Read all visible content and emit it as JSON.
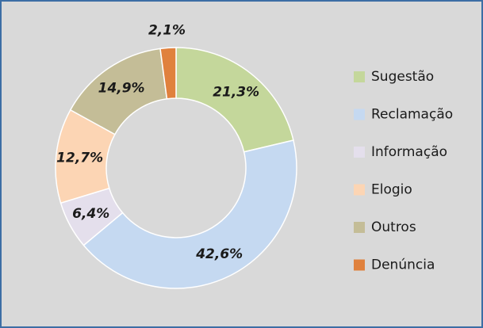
{
  "chart_data": {
    "type": "donut",
    "categories": [
      "Sugestão",
      "Reclamação",
      "Informação",
      "Elogio",
      "Outros",
      "Denúncia"
    ],
    "values": [
      21.3,
      42.6,
      6.4,
      12.7,
      14.9,
      2.1
    ],
    "value_labels": [
      "21,3%",
      "42,6%",
      "6,4%",
      "12,7%",
      "14,9%",
      "2,1%"
    ],
    "colors": [
      "#c4d79b",
      "#c5d9f1",
      "#e4dfec",
      "#fcd5b4",
      "#c4bd97",
      "#e0813d"
    ],
    "legend": "right"
  }
}
